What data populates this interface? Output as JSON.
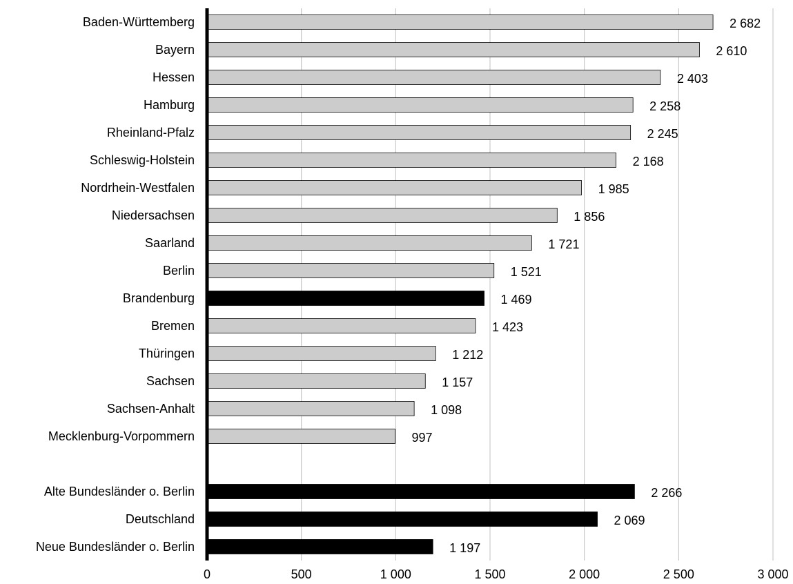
{
  "chart_data": {
    "type": "bar",
    "orientation": "horizontal",
    "title": "",
    "xlabel": "",
    "ylabel": "",
    "xlim": [
      0,
      3000
    ],
    "x_ticks": [
      0,
      500,
      1000,
      1500,
      2000,
      2500,
      3000
    ],
    "x_tick_labels": [
      "0",
      "500",
      "1 000",
      "1 500",
      "2 000",
      "2 500",
      "3 000"
    ],
    "grid": "vertical",
    "legend": "none",
    "colors": {
      "default": "#cccccc",
      "highlight": "#000000",
      "grid": "#c0c0c0",
      "axis": "#000000"
    },
    "categories": [
      "Baden-Württemberg",
      "Bayern",
      "Hessen",
      "Hamburg",
      "Rheinland-Pfalz",
      "Schleswig-Holstein",
      "Nordrhein-Westfalen",
      "Niedersachsen",
      "Saarland",
      "Berlin",
      "Brandenburg",
      "Bremen",
      "Thüringen",
      "Sachsen",
      "Sachsen-Anhalt",
      "Mecklenburg-Vorpommern",
      "",
      "Alte Bundesländer o. Berlin",
      "Deutschland",
      "Neue Bundesländer o. Berlin"
    ],
    "values": [
      2682,
      2610,
      2403,
      2258,
      2245,
      2168,
      1985,
      1856,
      1721,
      1521,
      1469,
      1423,
      1212,
      1157,
      1098,
      997,
      null,
      2266,
      2069,
      1197
    ],
    "value_labels": [
      "2 682",
      "2 610",
      "2 403",
      "2 258",
      "2 245",
      "2 168",
      "1 985",
      "1 856",
      "1 721",
      "1 521",
      "1 469",
      "1 423",
      "1 212",
      "1 157",
      "1 098",
      "997",
      "",
      "2 266",
      "2 069",
      "1 197"
    ],
    "highlighted": [
      "Brandenburg",
      "Alte Bundesländer o. Berlin",
      "Deutschland",
      "Neue Bundesländer o. Berlin"
    ]
  }
}
